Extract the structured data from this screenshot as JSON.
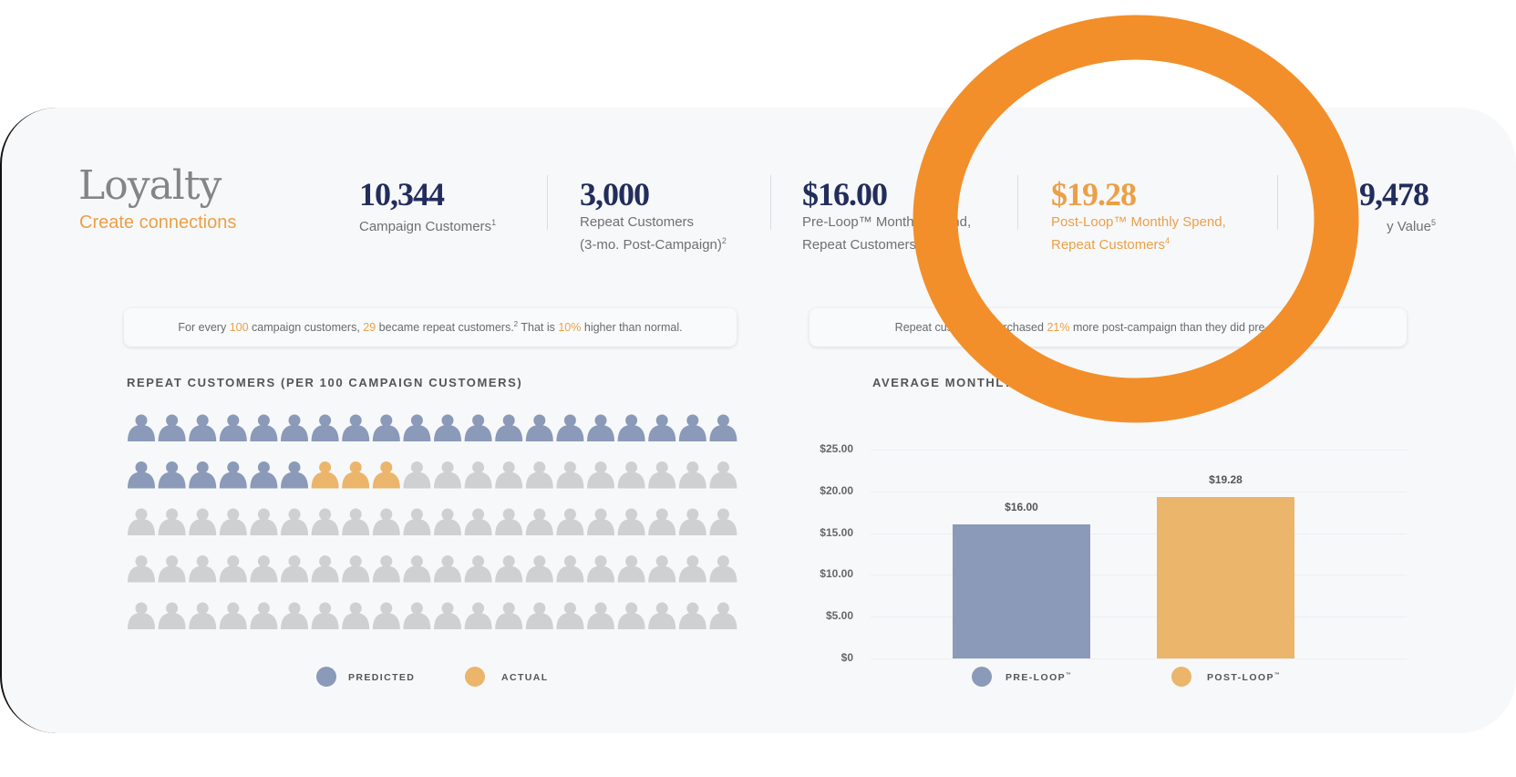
{
  "header": {
    "title": "Loyalty",
    "subtitle": "Create connections"
  },
  "stats": [
    {
      "value": "10,344",
      "label_line1": "Campaign Customers",
      "sup": "1"
    },
    {
      "value": "3,000",
      "label_line1": "Repeat Customers",
      "label_line2": "(3-mo. Post-Campaign)",
      "sup": "2"
    },
    {
      "value": "$16.00",
      "label_line1": "Pre-Loop™ Monthly Spend,",
      "label_line2": "Repeat Customers",
      "sup": "3"
    },
    {
      "value": "$19.28",
      "label_line1": "Post-Loop™ Monthly Spend,",
      "label_line2": "Repeat Customers",
      "sup": "4"
    },
    {
      "value": "9,478",
      "label_line1": "y Value",
      "sup": "5"
    }
  ],
  "callouts": {
    "left": {
      "t1": "For every ",
      "h1": "100",
      "t2": " campaign customers, ",
      "h2": "29",
      "t3": " became repeat customers.",
      "sup": "2",
      "t4": " That is ",
      "h3": "10%",
      "t5": " higher than normal."
    },
    "right": {
      "t1": "Repeat customers purchased ",
      "h1": "21%",
      "t2": " more post-campaign than they did pre-campaign."
    }
  },
  "pictogram": {
    "title": "REPEAT CUSTOMERS (PER 100 CAMPAIGN CUSTOMERS)",
    "total": 100,
    "predicted": 26,
    "actual": 3,
    "colors": {
      "predicted": "#8a9ab8",
      "actual": "#ebb56b",
      "other": "#cfd0d2"
    },
    "legend": [
      {
        "label": "PREDICTED",
        "color": "#8a9ab8"
      },
      {
        "label": "ACTUAL",
        "color": "#ebb56b"
      }
    ]
  },
  "chart_data": {
    "type": "bar",
    "title": "AVERAGE MONTHLY",
    "categories": [
      "Pre-Loop™",
      "Post-Loop™"
    ],
    "values": [
      16.0,
      19.28
    ],
    "data_labels": [
      "$16.00",
      "$19.28"
    ],
    "colors": [
      "#8a9ab8",
      "#ebb56b"
    ],
    "ylim": [
      0,
      25
    ],
    "yticks": [
      "$25.00",
      "$20.00",
      "$15.00",
      "$10.00",
      "$5.00",
      "$0"
    ],
    "grid": true,
    "legend": [
      {
        "label": "PRE-LOOP",
        "tm": "™",
        "color": "#8a9ab8"
      },
      {
        "label": "POST-LOOP",
        "tm": "™",
        "color": "#ebb56b"
      }
    ],
    "legend_position": "bottom"
  },
  "annotation": {
    "shape": "ellipse-ring",
    "color": "#f28f2a"
  }
}
